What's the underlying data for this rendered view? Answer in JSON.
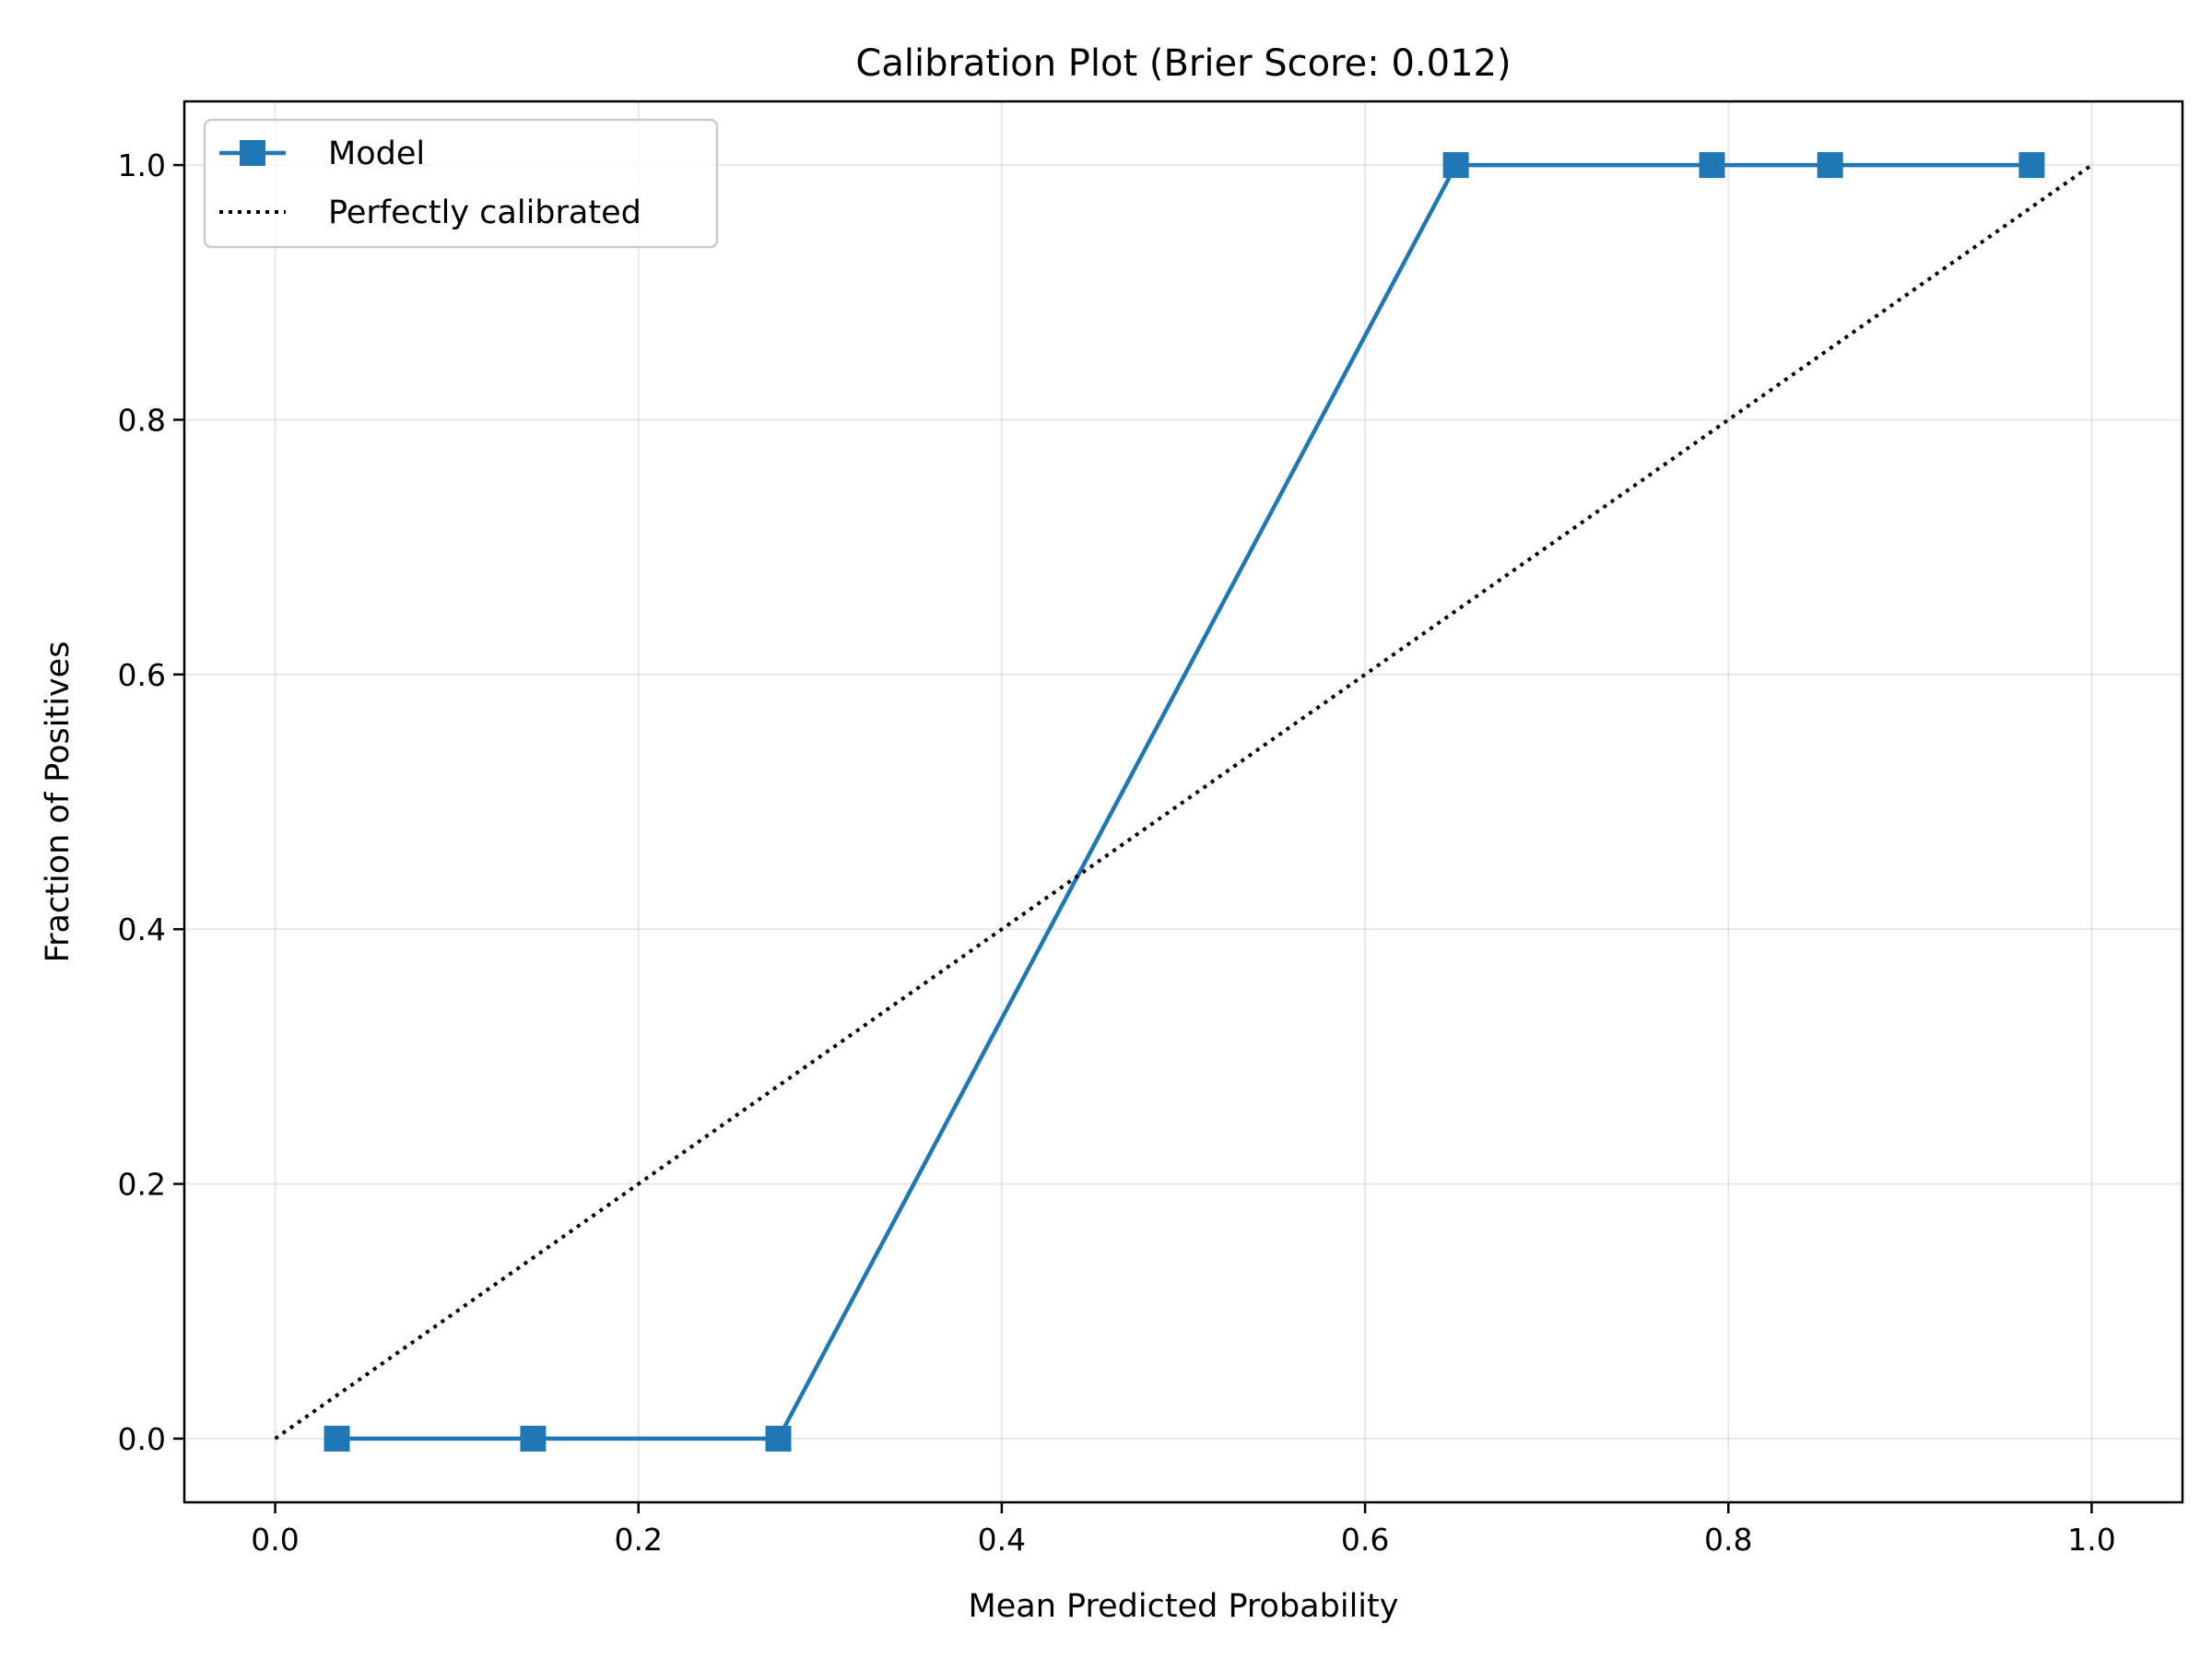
{
  "chart_data": {
    "type": "line",
    "title": "Calibration Plot (Brier Score: 0.012)",
    "xlabel": "Mean Predicted Probability",
    "ylabel": "Fraction of Positives",
    "xlim": [
      -0.05,
      1.05
    ],
    "ylim": [
      -0.05,
      1.05
    ],
    "xticks": [
      0.0,
      0.2,
      0.4,
      0.6,
      0.8,
      1.0
    ],
    "yticks": [
      0.0,
      0.2,
      0.4,
      0.6,
      0.8,
      1.0
    ],
    "xtick_labels": [
      "0.0",
      "0.2",
      "0.4",
      "0.6",
      "0.8",
      "1.0"
    ],
    "ytick_labels": [
      "0.0",
      "0.2",
      "0.4",
      "0.6",
      "0.8",
      "1.0"
    ],
    "grid": true,
    "legend_position": "top-left",
    "series": [
      {
        "name": "Model",
        "style": "solid-square-markers",
        "color": "#1f77b4",
        "x": [
          0.034,
          0.142,
          0.277,
          0.65,
          0.791,
          0.856,
          0.967
        ],
        "y": [
          0.0,
          0.0,
          0.0,
          1.0,
          1.0,
          1.0,
          1.0
        ]
      },
      {
        "name": "Perfectly calibrated",
        "style": "dotted",
        "color": "#000000",
        "x": [
          0.0,
          1.0
        ],
        "y": [
          0.0,
          1.0
        ]
      }
    ]
  }
}
